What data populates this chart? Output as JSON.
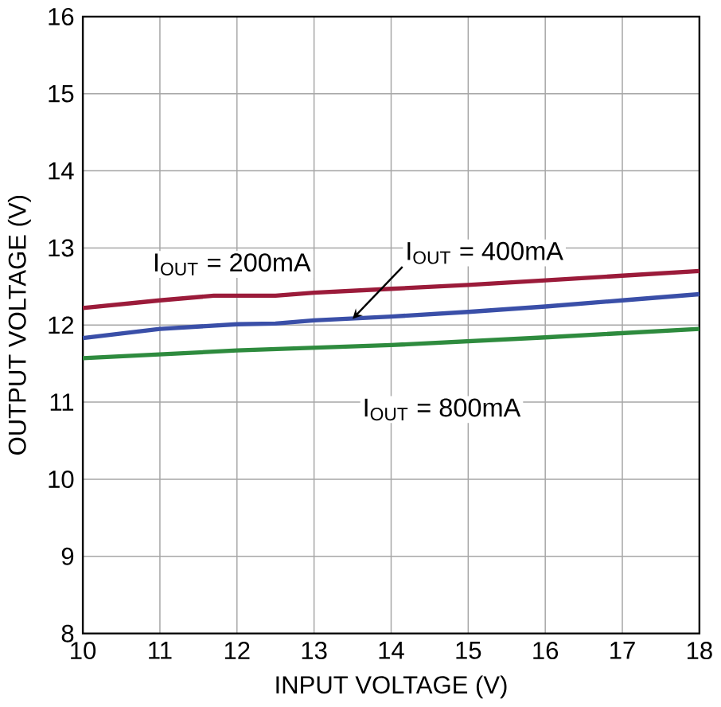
{
  "chart_data": {
    "type": "line",
    "xlabel": "INPUT VOLTAGE (V)",
    "ylabel": "OUTPUT VOLTAGE (V)",
    "xlim": [
      10,
      18
    ],
    "ylim": [
      8,
      16
    ],
    "xticks": [
      10,
      11,
      12,
      13,
      14,
      15,
      16,
      17,
      18
    ],
    "yticks": [
      8,
      9,
      10,
      11,
      12,
      13,
      14,
      15,
      16
    ],
    "grid": true,
    "marker": "none",
    "line_style": "solid",
    "series": [
      {
        "color": "#9b1b3a",
        "x": [
          10,
          11,
          11.7,
          12.5,
          13,
          14,
          15,
          16,
          17,
          18
        ],
        "values": [
          12.22,
          12.32,
          12.38,
          12.38,
          12.42,
          12.47,
          12.52,
          12.58,
          12.64,
          12.7
        ]
      },
      {
        "color": "#3a4fa8",
        "x": [
          10,
          11,
          12,
          12.5,
          13,
          14,
          15,
          16,
          17,
          18
        ],
        "values": [
          11.83,
          11.95,
          12.01,
          12.02,
          12.06,
          12.11,
          12.17,
          12.24,
          12.32,
          12.4
        ]
      },
      {
        "color": "#2e8b3e",
        "x": [
          10,
          12,
          14,
          16,
          18
        ],
        "values": [
          11.57,
          11.67,
          11.74,
          11.84,
          11.95
        ]
      }
    ],
    "annotations": [
      {
        "text": "I$_{OUT}$ = 200mA",
        "x": 12.3,
        "y": 12.39
      },
      {
        "text": "I$_{OUT}$ = 400mA",
        "x": 13.5,
        "y": 12.08
      },
      {
        "text": "I$_{OUT}$ = 800mA",
        "x": 14.9,
        "y": 11.79
      }
    ]
  }
}
